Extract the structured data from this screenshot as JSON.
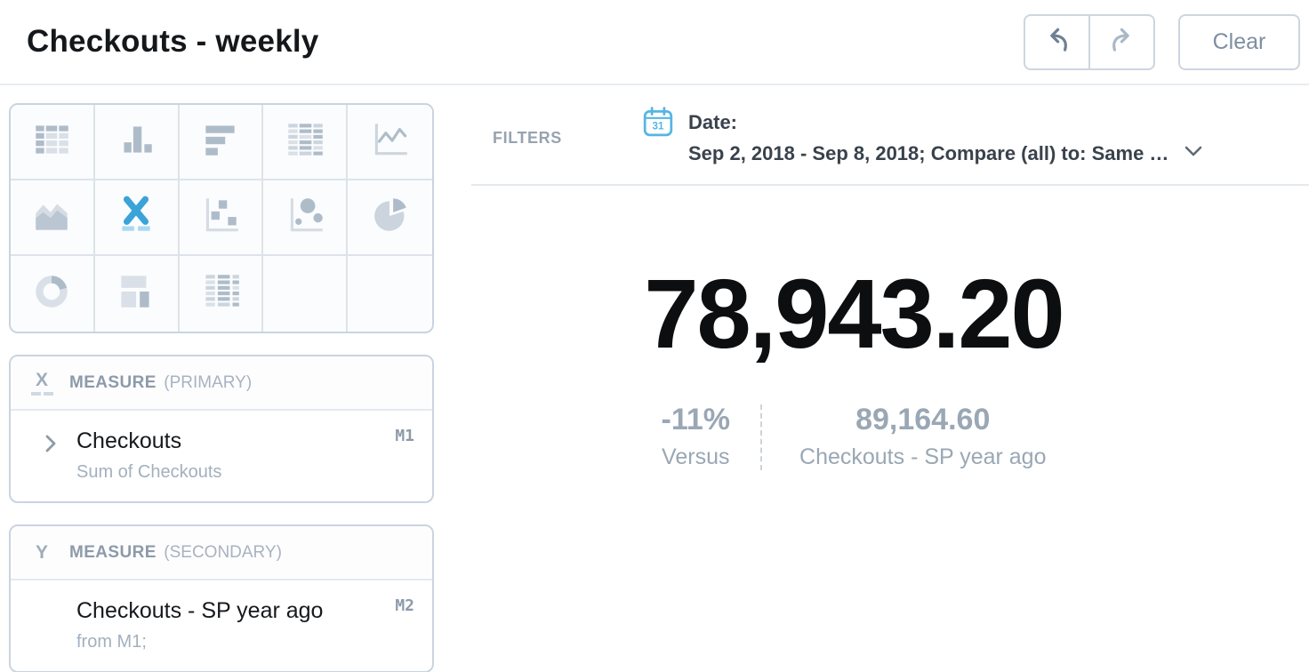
{
  "header": {
    "title": "Checkouts - weekly",
    "undo_label": "undo",
    "redo_label": "redo",
    "clear_label": "Clear"
  },
  "chart_picker": {
    "selected": "kpi",
    "items": [
      {
        "name": "table",
        "selected": false
      },
      {
        "name": "bar-chart",
        "selected": false
      },
      {
        "name": "horizontal-bar-chart",
        "selected": false
      },
      {
        "name": "pivot-table",
        "selected": false
      },
      {
        "name": "line-chart",
        "selected": false
      },
      {
        "name": "area-chart",
        "selected": false
      },
      {
        "name": "kpi",
        "selected": true
      },
      {
        "name": "scatter-plot",
        "selected": false
      },
      {
        "name": "bubble-chart",
        "selected": false
      },
      {
        "name": "pie-chart",
        "selected": false
      },
      {
        "name": "donut-chart",
        "selected": false
      },
      {
        "name": "dashboard-layout",
        "selected": false
      },
      {
        "name": "heat-table",
        "selected": false
      },
      {
        "name": "empty",
        "selected": false
      },
      {
        "name": "empty",
        "selected": false
      }
    ]
  },
  "measures": {
    "primary": {
      "axis_letter": "X",
      "label": "MEASURE",
      "qualifier": "(PRIMARY)",
      "field": "Checkouts",
      "badge": "M1",
      "detail": "Sum of Checkouts"
    },
    "secondary": {
      "axis_letter": "Y",
      "label": "MEASURE",
      "qualifier": "(SECONDARY)",
      "field": "Checkouts - SP year ago",
      "badge": "M2",
      "detail": "from M1;"
    }
  },
  "filters": {
    "label": "FILTERS",
    "field": "Date:",
    "value": "Sep 2, 2018 - Sep 8, 2018; Compare (all) to: Same …",
    "icon": "calendar-icon"
  },
  "kpi": {
    "value": "78,943.20",
    "delta_percent": "-11%",
    "delta_label": "Versus",
    "comparison_value": "89,164.60",
    "comparison_label": "Checkouts - SP year ago"
  },
  "colors": {
    "accent_blue": "#3ba3d8",
    "accent_blue_light": "#a9d9f0",
    "muted_gray": "#9aa7b4",
    "panel_border": "#c9d4e0",
    "icon_gray": "#aebcca",
    "dark_text": "#15181b",
    "filter_text": "#39424c"
  }
}
